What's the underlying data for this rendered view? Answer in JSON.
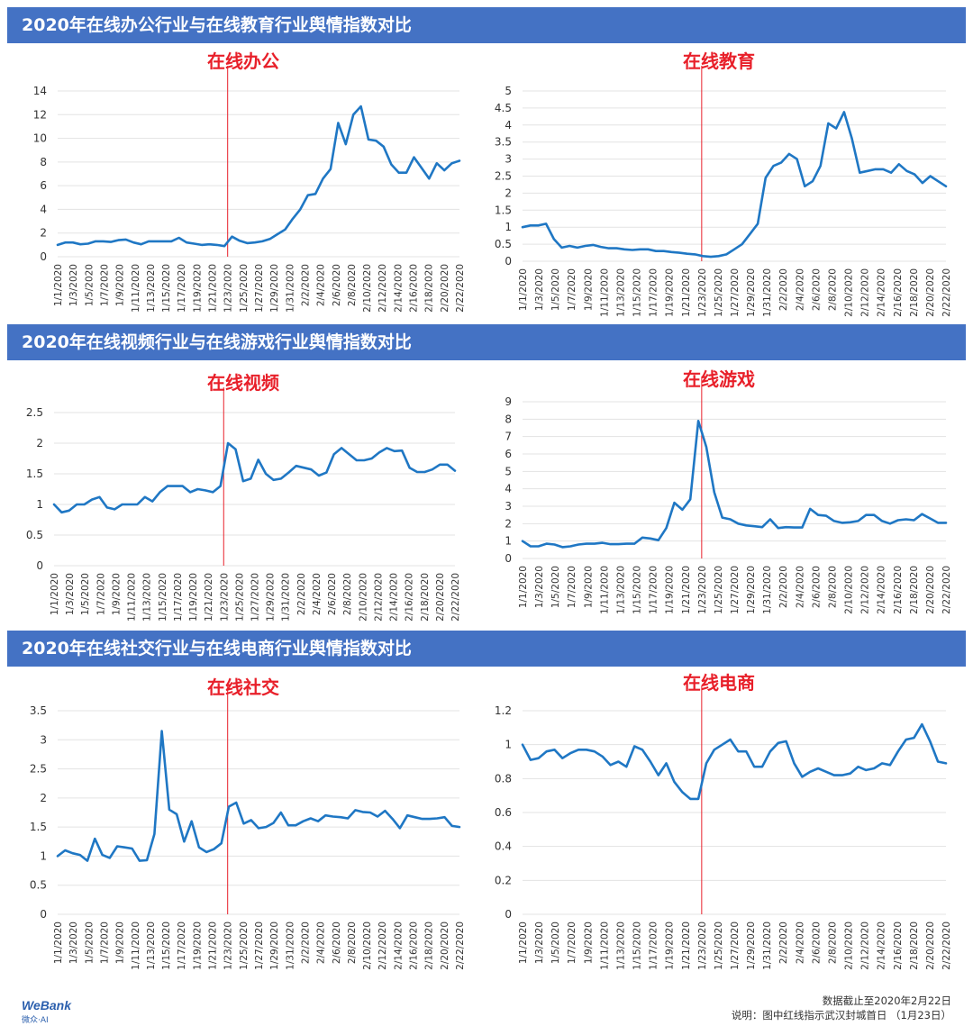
{
  "sections": [
    {
      "title": "2020年在线办公行业与在线教育行业舆情指数对比"
    },
    {
      "title": "2020年在线视频行业与在线游戏行业舆情指数对比"
    },
    {
      "title": "2020年在线社交行业与在线电商行业舆情指数对比"
    }
  ],
  "colors": {
    "banner": "#4472c4",
    "line": "#1f77c4",
    "marker": "#e8202a",
    "title": "#e8202a"
  },
  "x_tick_labels": [
    "1/1/2020",
    "1/3/2020",
    "1/5/2020",
    "1/7/2020",
    "1/9/2020",
    "1/11/2020",
    "1/13/2020",
    "1/15/2020",
    "1/17/2020",
    "1/19/2020",
    "1/21/2020",
    "1/23/2020",
    "1/25/2020",
    "1/27/2020",
    "1/29/2020",
    "1/31/2020",
    "2/2/2020",
    "2/4/2020",
    "2/6/2020",
    "2/8/2020",
    "2/10/2020",
    "2/12/2020",
    "2/14/2020",
    "2/16/2020",
    "2/18/2020",
    "2/20/2020",
    "2/22/2020"
  ],
  "chart_data": [
    {
      "type": "line",
      "title": "在线办公",
      "ylim": [
        0,
        14
      ],
      "yticks": [
        0,
        2,
        4,
        6,
        8,
        10,
        12,
        14
      ],
      "marker_date": "1/23/2020",
      "series": [
        {
          "values": [
            1.0,
            1.2,
            1.2,
            1.05,
            1.1,
            1.3,
            1.3,
            1.25,
            1.4,
            1.45,
            1.2,
            1.05,
            1.3,
            1.3,
            1.3,
            1.3,
            1.6,
            1.2,
            1.1,
            1.0,
            1.05,
            1.0,
            0.9,
            1.7,
            1.35,
            1.15,
            1.2,
            1.3,
            1.5,
            1.9,
            2.3,
            3.2,
            4.0,
            5.2,
            5.3,
            6.6,
            7.4,
            11.3,
            9.5,
            12.0,
            12.7,
            9.9,
            9.8,
            9.3,
            7.8,
            7.1,
            7.1,
            8.4,
            7.5,
            6.6,
            7.9,
            7.3,
            7.9,
            8.1
          ]
        }
      ]
    },
    {
      "type": "line",
      "title": "在线教育",
      "ylim": [
        0,
        5
      ],
      "yticks": [
        0,
        0.5,
        1,
        1.5,
        2,
        2.5,
        3,
        3.5,
        4,
        4.5,
        5
      ],
      "marker_date": "1/23/2020",
      "series": [
        {
          "values": [
            1.0,
            1.05,
            1.05,
            1.1,
            0.65,
            0.4,
            0.45,
            0.4,
            0.45,
            0.48,
            0.42,
            0.38,
            0.38,
            0.35,
            0.33,
            0.35,
            0.35,
            0.3,
            0.3,
            0.27,
            0.25,
            0.22,
            0.2,
            0.15,
            0.13,
            0.15,
            0.2,
            0.35,
            0.5,
            0.8,
            1.1,
            2.45,
            2.8,
            2.9,
            3.15,
            3.0,
            2.2,
            2.35,
            2.8,
            4.05,
            3.9,
            4.38,
            3.6,
            2.6,
            2.65,
            2.7,
            2.7,
            2.6,
            2.85,
            2.65,
            2.55,
            2.3,
            2.5,
            2.35,
            2.2
          ]
        }
      ]
    },
    {
      "type": "line",
      "title": "在线视频",
      "ylim": [
        0,
        2.5
      ],
      "yticks": [
        0,
        0.5,
        1,
        1.5,
        2,
        2.5
      ],
      "marker_date": "1/23/2020",
      "series": [
        {
          "values": [
            1.0,
            0.87,
            0.9,
            1.0,
            1.0,
            1.08,
            1.12,
            0.95,
            0.92,
            1.0,
            1.0,
            1.0,
            1.12,
            1.05,
            1.2,
            1.3,
            1.3,
            1.3,
            1.2,
            1.25,
            1.23,
            1.2,
            1.3,
            2.0,
            1.9,
            1.38,
            1.42,
            1.73,
            1.5,
            1.4,
            1.42,
            1.52,
            1.63,
            1.6,
            1.57,
            1.47,
            1.52,
            1.82,
            1.92,
            1.82,
            1.72,
            1.72,
            1.75,
            1.85,
            1.92,
            1.87,
            1.88,
            1.6,
            1.53,
            1.53,
            1.57,
            1.65,
            1.65,
            1.55
          ]
        }
      ]
    },
    {
      "type": "line",
      "title": "在线游戏",
      "ylim": [
        0,
        9
      ],
      "yticks": [
        0,
        1,
        2,
        3,
        4,
        5,
        6,
        7,
        8,
        9
      ],
      "marker_date": "1/23/2020",
      "series": [
        {
          "values": [
            1.0,
            0.7,
            0.7,
            0.85,
            0.8,
            0.65,
            0.7,
            0.8,
            0.85,
            0.85,
            0.9,
            0.82,
            0.82,
            0.85,
            0.85,
            1.2,
            1.15,
            1.05,
            1.75,
            3.2,
            2.8,
            3.4,
            7.9,
            6.4,
            3.8,
            2.35,
            2.25,
            2.0,
            1.9,
            1.85,
            1.8,
            2.25,
            1.75,
            1.8,
            1.78,
            1.78,
            2.85,
            2.5,
            2.45,
            2.15,
            2.05,
            2.08,
            2.15,
            2.5,
            2.5,
            2.15,
            2.0,
            2.2,
            2.25,
            2.2,
            2.55,
            2.3,
            2.05,
            2.05
          ]
        }
      ]
    },
    {
      "type": "line",
      "title": "在线社交",
      "ylim": [
        0,
        3.5
      ],
      "yticks": [
        0,
        0.5,
        1,
        1.5,
        2,
        2.5,
        3,
        3.5
      ],
      "marker_date": "1/23/2020",
      "series": [
        {
          "values": [
            1.0,
            1.1,
            1.05,
            1.02,
            0.92,
            1.3,
            1.02,
            0.97,
            1.17,
            1.15,
            1.13,
            0.92,
            0.93,
            1.38,
            3.15,
            1.8,
            1.72,
            1.25,
            1.6,
            1.15,
            1.07,
            1.12,
            1.22,
            1.85,
            1.92,
            1.56,
            1.62,
            1.48,
            1.5,
            1.57,
            1.75,
            1.53,
            1.53,
            1.6,
            1.65,
            1.6,
            1.7,
            1.68,
            1.67,
            1.65,
            1.79,
            1.76,
            1.75,
            1.68,
            1.78,
            1.64,
            1.48,
            1.7,
            1.67,
            1.64,
            1.64,
            1.65,
            1.67,
            1.52,
            1.5
          ]
        }
      ]
    },
    {
      "type": "line",
      "title": "在线电商",
      "ylim": [
        0,
        1.2
      ],
      "yticks": [
        0,
        0.2,
        0.4,
        0.6,
        0.8,
        1,
        1.2
      ],
      "marker_date": "1/23/2020",
      "series": [
        {
          "values": [
            1.0,
            0.91,
            0.92,
            0.96,
            0.97,
            0.92,
            0.95,
            0.97,
            0.97,
            0.96,
            0.93,
            0.88,
            0.9,
            0.87,
            0.99,
            0.97,
            0.9,
            0.82,
            0.89,
            0.78,
            0.72,
            0.68,
            0.68,
            0.89,
            0.97,
            1.0,
            1.03,
            0.96,
            0.96,
            0.87,
            0.87,
            0.96,
            1.01,
            1.02,
            0.89,
            0.81,
            0.84,
            0.86,
            0.84,
            0.82,
            0.82,
            0.83,
            0.87,
            0.85,
            0.86,
            0.89,
            0.88,
            0.96,
            1.03,
            1.04,
            1.12,
            1.02,
            0.9,
            0.89
          ]
        }
      ]
    }
  ],
  "footer": {
    "logo": "WeBank",
    "logo_sub": "微众·AI",
    "note1": "数据截止至2020年2月22日",
    "note2": "说明：图中红线指示武汉封城首日 （1月23日）"
  }
}
